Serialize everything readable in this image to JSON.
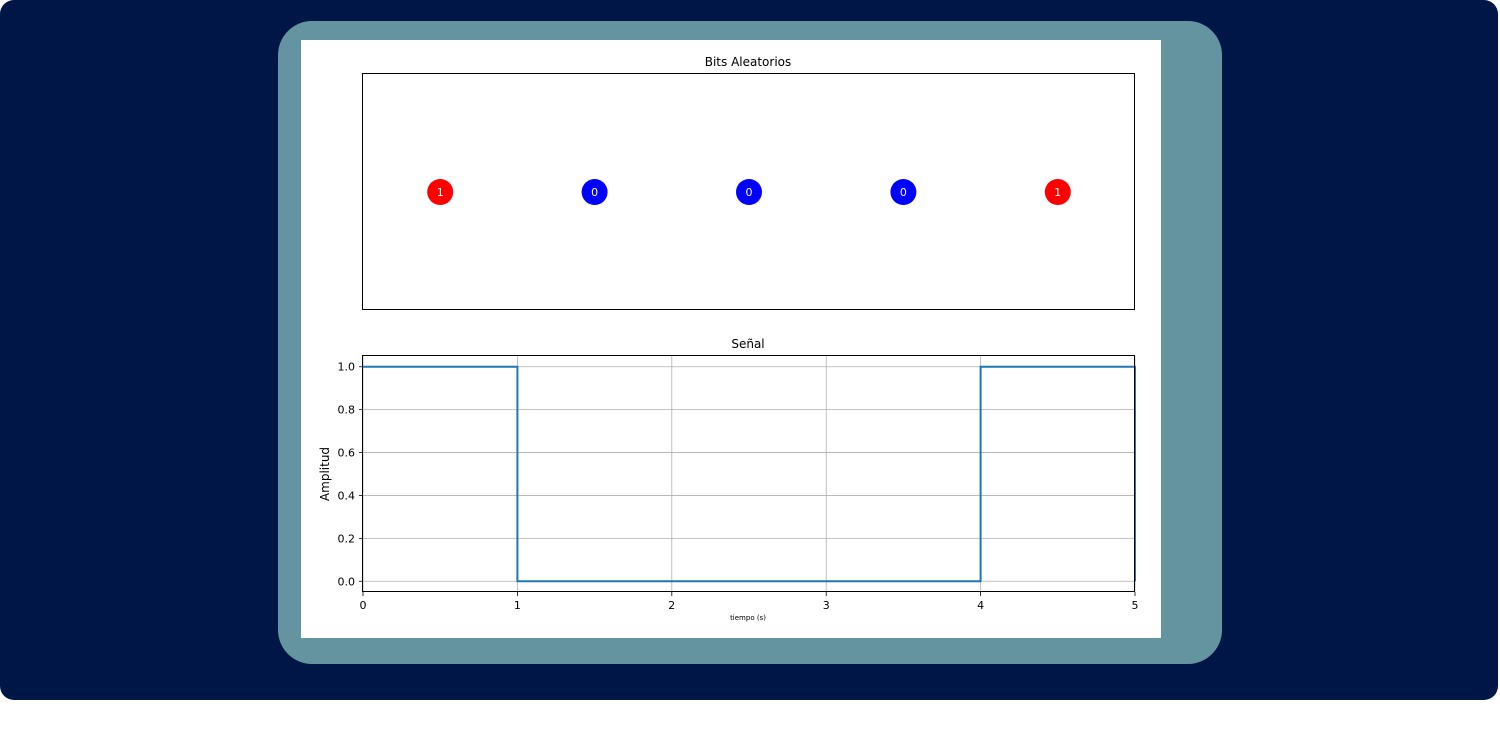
{
  "chart_data": [
    {
      "type": "scatter",
      "title": "Bits Aleatorios",
      "bits": [
        1,
        0,
        0,
        0,
        1
      ],
      "labels": [
        "1",
        "0",
        "0",
        "0",
        "1"
      ],
      "x": [
        0.5,
        1.5,
        2.5,
        3.5,
        4.5
      ],
      "y": [
        0,
        0,
        0,
        0,
        0
      ],
      "xlim": [
        0,
        5
      ],
      "ylim": [
        -1,
        1
      ],
      "axes_visible": false,
      "colors": {
        "1": "#ff0000",
        "0": "#0000ff"
      }
    },
    {
      "type": "line",
      "step": "post",
      "title": "Señal",
      "xlabel": "tiempo (s)",
      "ylabel": "Amplitud",
      "x": [
        0,
        1,
        2,
        3,
        4,
        5
      ],
      "y": [
        1,
        0,
        0,
        0,
        1,
        0
      ],
      "xlim": [
        0,
        5
      ],
      "ylim": [
        -0.05,
        1.05
      ],
      "xticks": [
        "0",
        "1",
        "2",
        "3",
        "4",
        "5"
      ],
      "yticks": [
        "0.0",
        "0.2",
        "0.4",
        "0.6",
        "0.8",
        "1.0"
      ],
      "grid": true,
      "color": "#1f77b4"
    }
  ]
}
